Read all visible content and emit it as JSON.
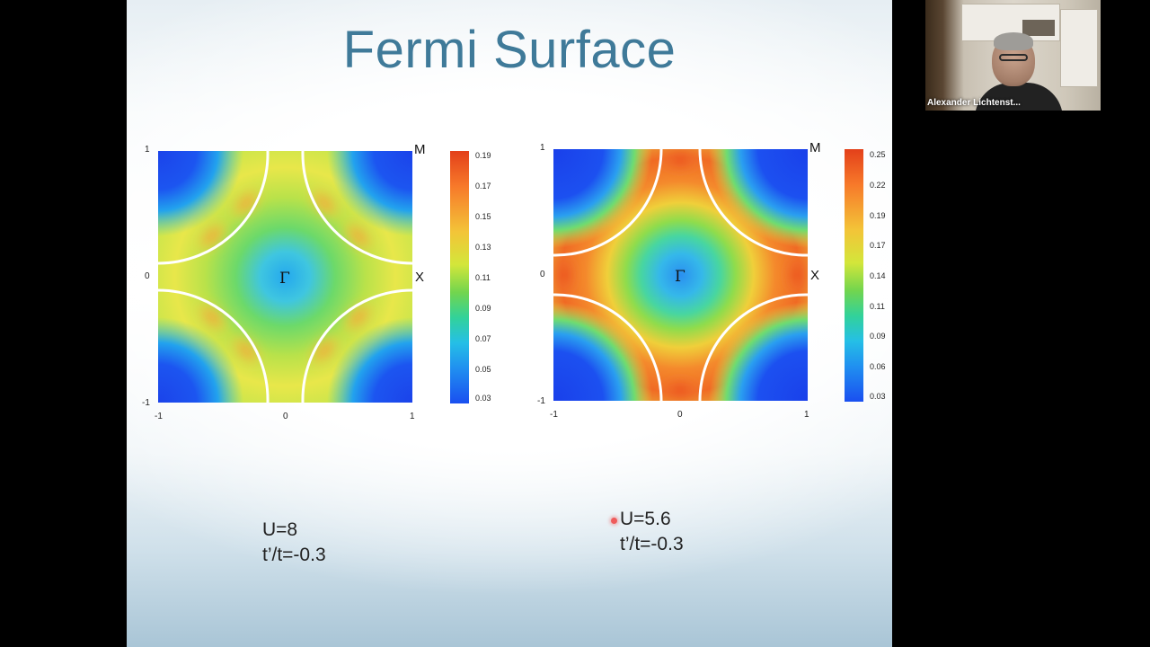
{
  "slide": {
    "title": "Fermi Surface",
    "plots": [
      {
        "x_ticks": [
          "-1",
          "0",
          "1"
        ],
        "y_ticks": [
          "1",
          "0",
          "-1"
        ],
        "corner_label": "M",
        "edge_label": "X",
        "center_label": "Γ",
        "colorbar_ticks": [
          "0.19",
          "0.17",
          "0.15",
          "0.13",
          "0.11",
          "0.09",
          "0.07",
          "0.05",
          "0.03"
        ],
        "params": [
          "U=8",
          "t’/t=-0.3"
        ]
      },
      {
        "x_ticks": [
          "-1",
          "0",
          "1"
        ],
        "y_ticks": [
          "1",
          "0",
          "-1"
        ],
        "corner_label": "M",
        "edge_label": "X",
        "center_label": "Γ",
        "colorbar_ticks": [
          "0.25",
          "0.22",
          "0.19",
          "0.17",
          "0.14",
          "0.11",
          "0.09",
          "0.06",
          "0.03"
        ],
        "params": [
          "U=5.6",
          "t’/t=-0.3"
        ]
      }
    ]
  },
  "video": {
    "participant_name": "Alexander Lichtenst..."
  },
  "colors": {
    "title": "#3f7a99",
    "background": "#000000",
    "fermi_line": "#ffffff",
    "pointer": "#ef5b5b"
  }
}
